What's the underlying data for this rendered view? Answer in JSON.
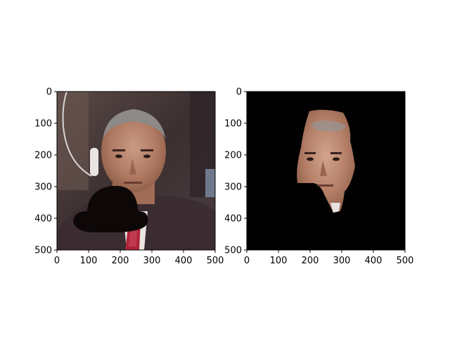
{
  "panels": [
    {
      "id": "left",
      "image": "photo of a man in a suit wearing an earpiece, with a black bowler hat overlaid on his chest",
      "xlim": [
        0,
        500
      ],
      "ylim": [
        500,
        0
      ],
      "xticks": [
        "0",
        "100",
        "200",
        "300",
        "400",
        "500"
      ],
      "yticks": [
        "0",
        "100",
        "200",
        "300",
        "400",
        "500"
      ]
    },
    {
      "id": "right",
      "image": "segmentation output: face region cut out on black background",
      "xlim": [
        0,
        500
      ],
      "ylim": [
        500,
        0
      ],
      "xticks": [
        "0",
        "100",
        "200",
        "300",
        "400",
        "500"
      ],
      "yticks": [
        "0",
        "100",
        "200",
        "300",
        "400",
        "500"
      ]
    }
  ],
  "colors": {
    "background_right": "#000000",
    "hat": "#0d0708",
    "suit": "#3a2c30",
    "tie": "#b0243a",
    "skin": "#b7836c"
  }
}
